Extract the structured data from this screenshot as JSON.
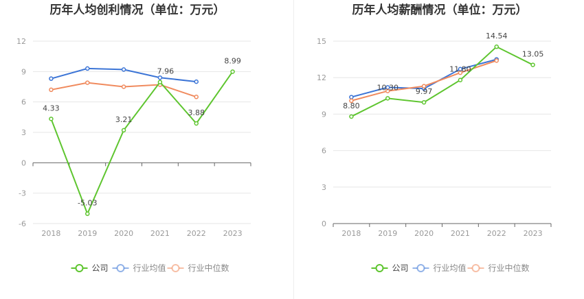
{
  "chart_data": [
    {
      "type": "line",
      "title": "历年人均创利情况（单位：万元）",
      "categories": [
        "2018",
        "2019",
        "2020",
        "2021",
        "2022",
        "2023"
      ],
      "ylim": [
        -6,
        12
      ],
      "yticks": [
        -6,
        -3,
        0,
        3,
        6,
        9,
        12
      ],
      "grid": true,
      "legend_position": "bottom",
      "series": [
        {
          "name": "公司",
          "color": "#5ec52f",
          "values": [
            4.33,
            -5.03,
            3.21,
            7.96,
            3.88,
            8.99
          ],
          "labels": [
            "4.33",
            "-5.03",
            "3.21",
            "7.96",
            "3.88",
            "8.99"
          ]
        },
        {
          "name": "行业均值",
          "color": "#3b74d6",
          "values": [
            8.3,
            9.3,
            9.2,
            8.4,
            8.0,
            null
          ]
        },
        {
          "name": "行业中位数",
          "color": "#f08a5d",
          "values": [
            7.2,
            7.9,
            7.5,
            7.7,
            6.5,
            null
          ]
        }
      ]
    },
    {
      "type": "line",
      "title": "历年人均薪酬情况（单位：万元）",
      "categories": [
        "2018",
        "2019",
        "2020",
        "2021",
        "2022",
        "2023"
      ],
      "ylim": [
        0,
        15
      ],
      "yticks": [
        0,
        3,
        6,
        9,
        12,
        15
      ],
      "grid": true,
      "legend_position": "bottom",
      "series": [
        {
          "name": "公司",
          "color": "#5ec52f",
          "values": [
            8.8,
            10.3,
            9.97,
            11.8,
            14.54,
            13.05
          ],
          "labels": [
            "8.80",
            "10.30",
            "9.97",
            "11.80",
            "14.54",
            "13.05"
          ]
        },
        {
          "name": "行业均值",
          "color": "#3b74d6",
          "values": [
            10.4,
            11.2,
            11.1,
            12.7,
            13.5,
            null
          ]
        },
        {
          "name": "行业中位数",
          "color": "#f08a5d",
          "values": [
            10.1,
            10.9,
            11.3,
            12.4,
            13.4,
            null
          ]
        }
      ]
    }
  ]
}
